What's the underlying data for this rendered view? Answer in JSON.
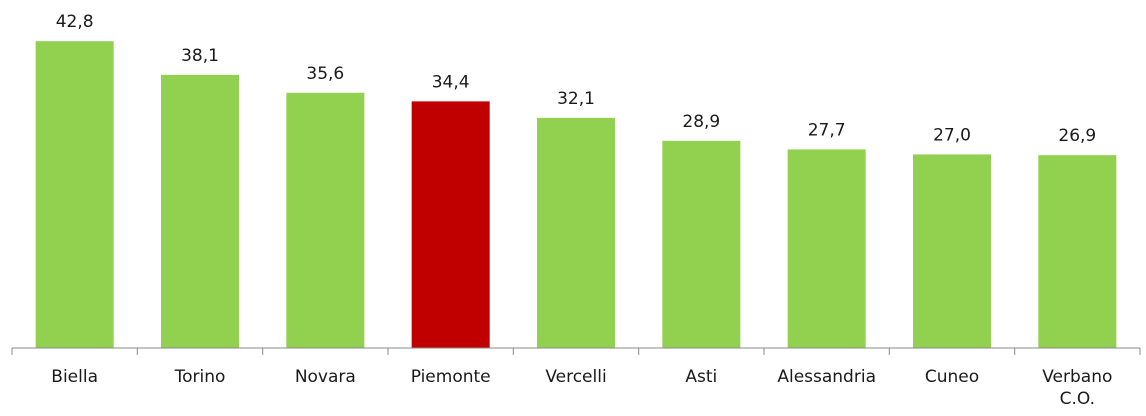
{
  "chart_data": {
    "type": "bar",
    "categories": [
      "Biella",
      "Torino",
      "Novara",
      "Piemonte",
      "Vercelli",
      "Asti",
      "Alessandria",
      "Cuneo",
      "Verbano\nC.O."
    ],
    "values": [
      42.8,
      38.1,
      35.6,
      34.4,
      32.1,
      28.9,
      27.7,
      27.0,
      26.9
    ],
    "value_labels": [
      "42,8",
      "38,1",
      "35,6",
      "34,4",
      "32,1",
      "28,9",
      "27,7",
      "27,0",
      "26,9"
    ],
    "colors": [
      "#92d050",
      "#92d050",
      "#92d050",
      "#c00000",
      "#92d050",
      "#92d050",
      "#92d050",
      "#92d050",
      "#92d050"
    ],
    "ylim": [
      0,
      45
    ]
  }
}
